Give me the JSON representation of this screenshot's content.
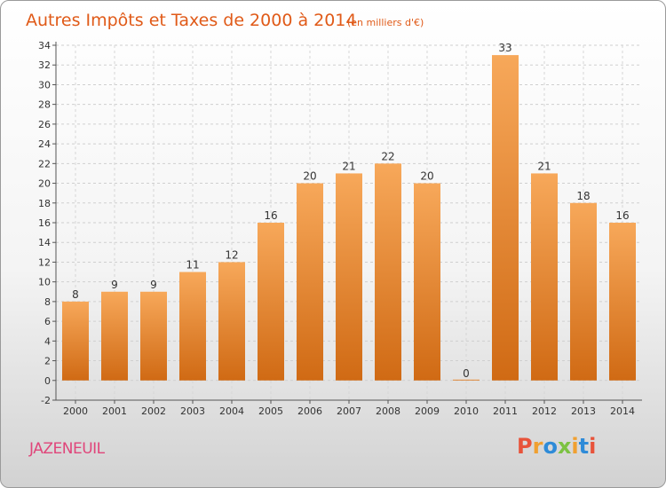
{
  "chart_data": {
    "type": "bar",
    "title": "Autres Impôts et Taxes de 2000 à 2014",
    "subtitle": "(en milliers d'€)",
    "categories": [
      "2000",
      "2001",
      "2002",
      "2003",
      "2004",
      "2005",
      "2006",
      "2007",
      "2008",
      "2009",
      "2010",
      "2011",
      "2012",
      "2013",
      "2014"
    ],
    "values": [
      8,
      9,
      9,
      11,
      12,
      16,
      20,
      21,
      22,
      20,
      0,
      33,
      21,
      18,
      16
    ],
    "ylim": [
      -2,
      34
    ],
    "yticks": [
      -2,
      0,
      2,
      4,
      6,
      8,
      10,
      12,
      14,
      16,
      18,
      20,
      22,
      24,
      26,
      28,
      30,
      32,
      34
    ],
    "grid": true,
    "bar_color": "#f28a2e"
  },
  "footer": {
    "commune": "JAZENEUIL",
    "logo_letters": [
      "P",
      "r",
      "o",
      "x",
      "i",
      "t",
      "i"
    ],
    "logo_colors": [
      "#e8533a",
      "#f0a030",
      "#2e8bd8",
      "#7cc242",
      "#f0a030",
      "#2e8bd8",
      "#e8533a"
    ]
  }
}
